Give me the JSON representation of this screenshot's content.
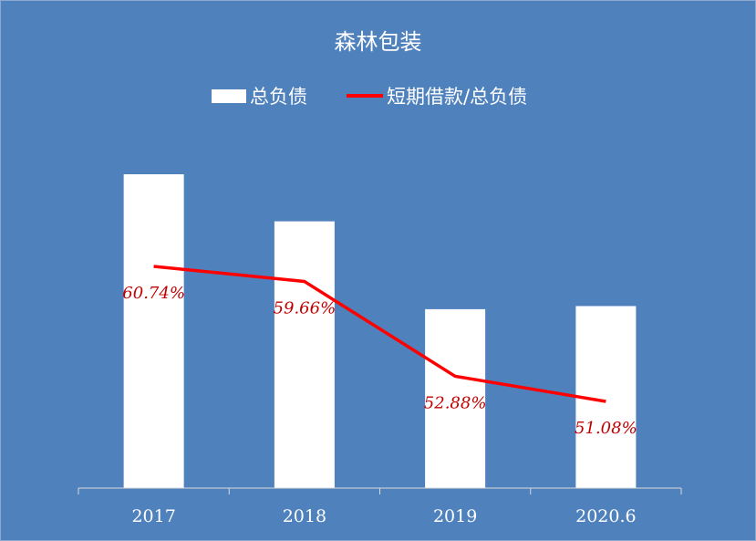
{
  "chart_data": {
    "type": "bar",
    "title": "森林包装",
    "categories": [
      "2017",
      "2018",
      "2019",
      "2020.6"
    ],
    "series": [
      {
        "name": "总负债",
        "type": "bar",
        "values": [
          100,
          85,
          57,
          58
        ],
        "color": "#ffffff"
      },
      {
        "name": "短期借款/总负债",
        "type": "line",
        "values": [
          60.74,
          59.66,
          52.88,
          51.08
        ],
        "labels": [
          "60.74%",
          "59.66%",
          "52.88%",
          "51.08%"
        ],
        "color": "#ff0000"
      }
    ],
    "legend_position": "top",
    "grid": false,
    "background_color": "#4f81bd",
    "label_color": "#c00000"
  }
}
